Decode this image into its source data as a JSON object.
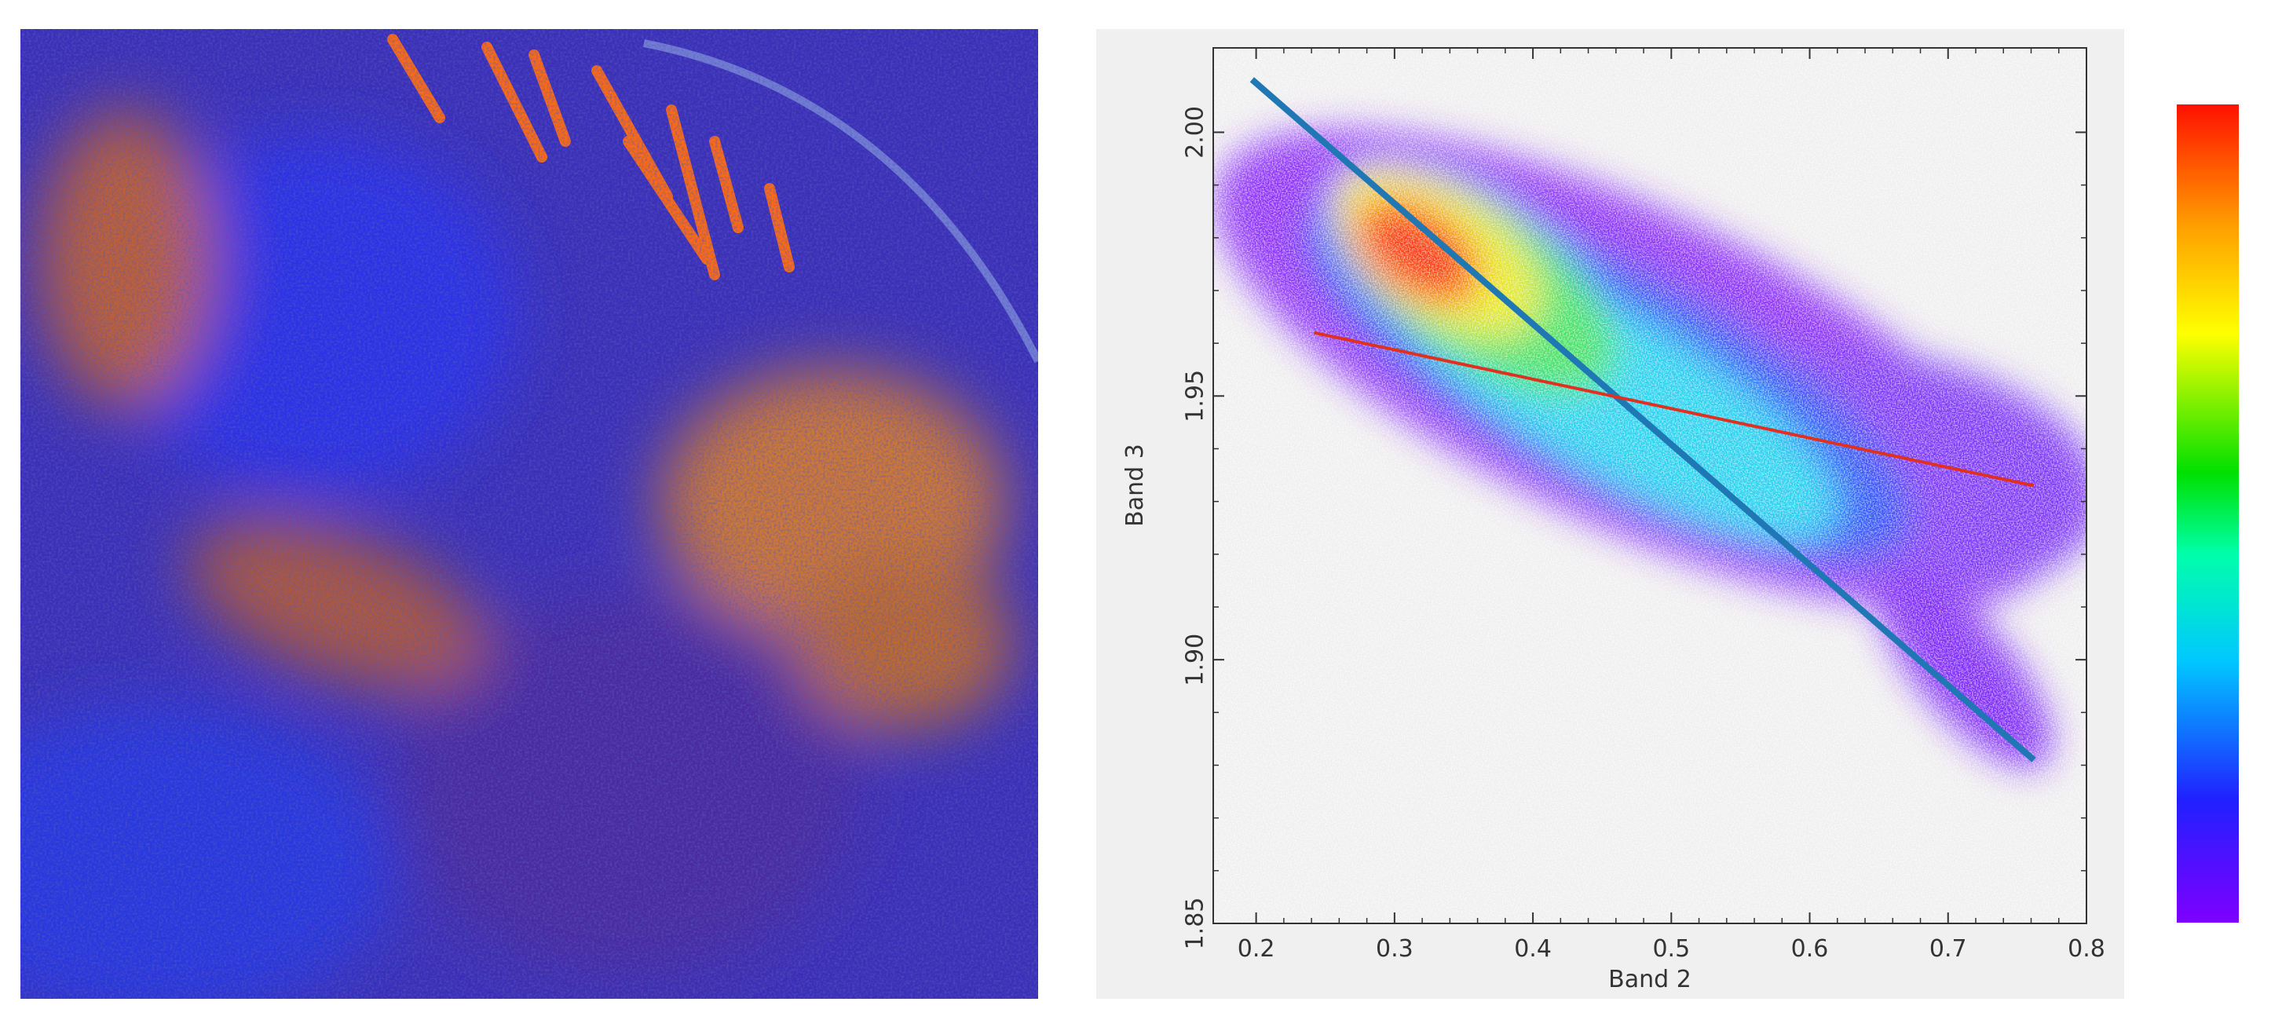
{
  "chart_data": {
    "type": "scatter",
    "xlabel": "Band 2",
    "ylabel": "Band 3",
    "xlim": [
      0.169,
      0.8
    ],
    "ylim": [
      1.85,
      2.016
    ],
    "xticks": [
      0.2,
      0.3,
      0.4,
      0.5,
      0.6,
      0.7,
      0.8
    ],
    "yticks": [
      {
        "value": 1.85,
        "label": "1.85"
      },
      {
        "value": 1.9,
        "label": "1.90"
      },
      {
        "value": 1.95,
        "label": "1.95"
      },
      {
        "value": 2.0,
        "label": "2.00"
      }
    ],
    "lines": [
      {
        "color": "#1f77b4",
        "x": [
          0.197,
          0.762
        ],
        "y": [
          2.01,
          1.881
        ]
      },
      {
        "color": "#e03020",
        "x": [
          0.242,
          0.762
        ],
        "y": [
          1.962,
          1.933
        ]
      }
    ]
  }
}
